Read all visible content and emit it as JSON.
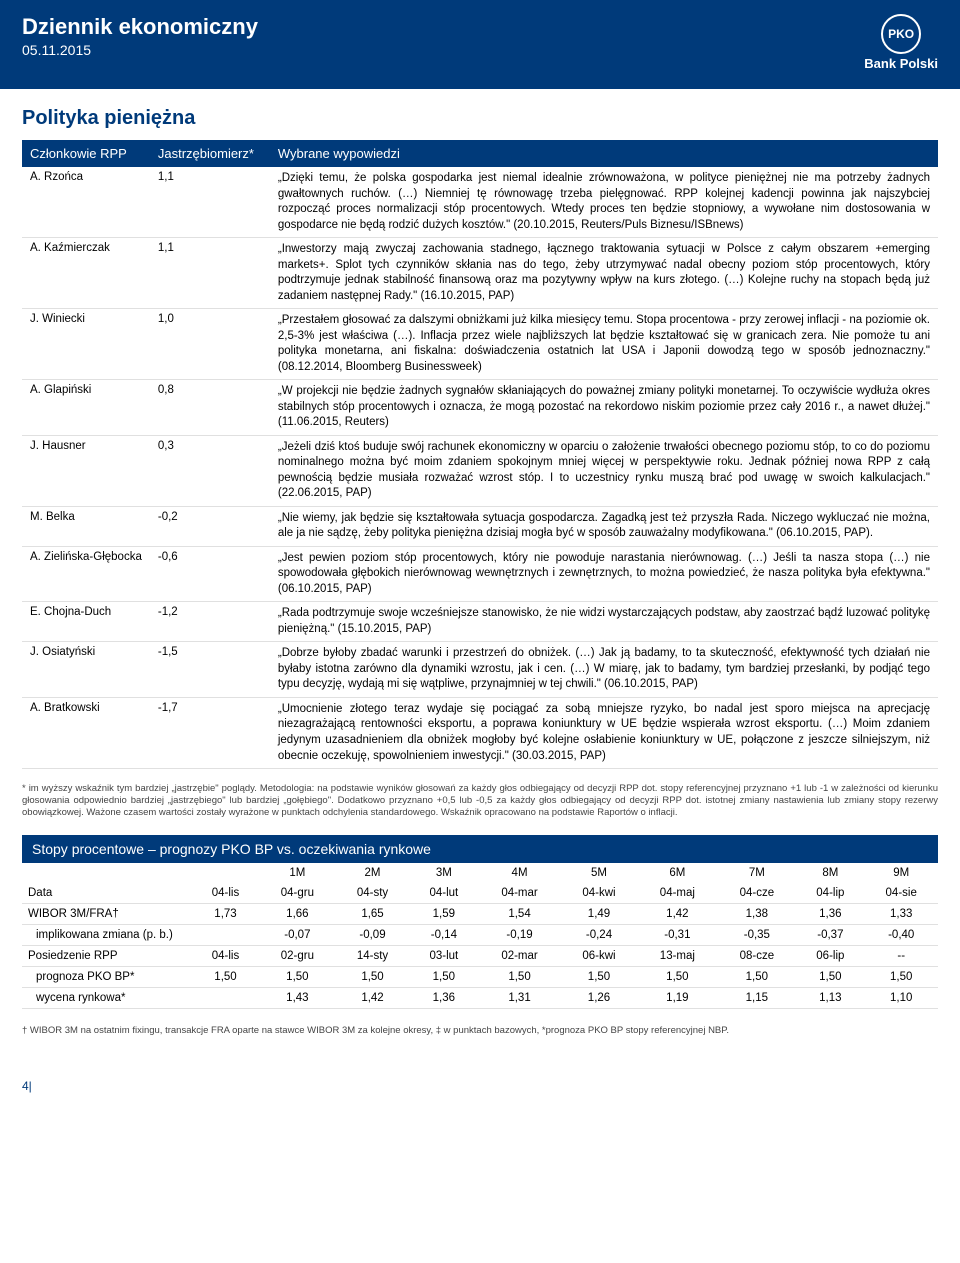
{
  "header": {
    "title": "Dziennik ekonomiczny",
    "date": "05.11.2015",
    "logo_text": "PKO",
    "logo_label": "Bank Polski"
  },
  "section_title": "Polityka pieniężna",
  "rpp": {
    "header": {
      "member": "Członkowie RPP",
      "score": "Jastrzębiomierz*",
      "quote": "Wybrane wypowiedzi"
    },
    "rows": [
      {
        "member": "A. Rzońca",
        "score": "1,1",
        "quote": "„Dzięki temu, że polska gospodarka jest niemal idealnie zrównoważona, w polityce pieniężnej nie ma potrzeby żadnych gwałtownych ruchów. (…) Niemniej tę równowagę trzeba pielęgnować. RPP kolejnej kadencji powinna jak najszybciej rozpocząć proces normalizacji stóp procentowych. Wtedy proces ten będzie stopniowy, a wywołane nim dostosowania w gospodarce nie będą rodzić dużych kosztów.\" (20.10.2015, Reuters/Puls Biznesu/ISBnews)"
      },
      {
        "member": "A. Kaźmierczak",
        "score": "1,1",
        "quote": "„Inwestorzy mają zwyczaj zachowania stadnego, łącznego traktowania sytuacji w Polsce z całym obszarem +emerging markets+. Splot tych czynników skłania nas do tego, żeby utrzymywać nadal obecny poziom stóp procentowych, który podtrzymuje jednak stabilność finansową oraz ma pozytywny wpływ na kurs złotego. (…) Kolejne ruchy na stopach będą już zadaniem następnej Rady.\" (16.10.2015, PAP)"
      },
      {
        "member": "J. Winiecki",
        "score": "1,0",
        "quote": "„Przestałem głosować za dalszymi obniżkami już kilka miesięcy temu. Stopa procentowa - przy zerowej inflacji - na poziomie ok. 2,5-3% jest właściwa (…). Inflacja przez wiele najbliższych lat będzie kształtować się w granicach zera. Nie pomoże tu ani polityka monetarna, ani fiskalna: doświadczenia ostatnich lat USA i Japonii dowodzą tego w sposób jednoznaczny.\" (08.12.2014, Bloomberg Businessweek)"
      },
      {
        "member": "A. Glapiński",
        "score": "0,8",
        "quote": "„W projekcji nie będzie żadnych sygnałów skłaniających do poważnej zmiany polityki monetarnej. To oczywiście wydłuża okres stabilnych stóp procentowych i oznacza, że mogą pozostać na rekordowo niskim poziomie przez cały 2016 r., a nawet dłużej.\" (11.06.2015, Reuters)"
      },
      {
        "member": "J. Hausner",
        "score": "0,3",
        "quote": "„Jeżeli dziś ktoś buduje swój rachunek ekonomiczny w oparciu o założenie trwałości obecnego poziomu stóp, to co do poziomu nominalnego można być moim zdaniem spokojnym mniej więcej w perspektywie roku. Jednak później nowa RPP z całą pewnością będzie musiała rozważać wzrost stóp. I to uczestnicy rynku muszą brać pod uwagę w swoich kalkulacjach.\" (22.06.2015, PAP)"
      },
      {
        "member": "M. Belka",
        "score": "-0,2",
        "quote": "„Nie wiemy, jak będzie się kształtowała sytuacja gospodarcza. Zagadką jest też przyszła Rada. Niczego wykluczać nie można, ale ja nie sądzę, żeby polityka pieniężna dzisiaj mogła być w sposób zauważalny modyfikowana.\" (06.10.2015, PAP)."
      },
      {
        "member": "A. Zielińska-Głębocka",
        "score": "-0,6",
        "quote": "„Jest pewien poziom stóp procentowych, który nie powoduje narastania nierównowag. (…) Jeśli ta nasza stopa (…) nie spowodowała głębokich nierównowag wewnętrznych i zewnętrznych, to można powiedzieć, że nasza polityka była efektywna.\" (06.10.2015, PAP)"
      },
      {
        "member": "E. Chojna-Duch",
        "score": "-1,2",
        "quote": "„Rada podtrzymuje swoje wcześniejsze stanowisko, że nie widzi wystarczających podstaw, aby zaostrzać bądź luzować politykę pieniężną.\" (15.10.2015, PAP)"
      },
      {
        "member": "J. Osiatyński",
        "score": "-1,5",
        "quote": "„Dobrze byłoby zbadać warunki i przestrzeń do obniżek. (…) Jak ją badamy, to ta skuteczność, efektywność tych działań nie byłaby istotna zarówno dla dynamiki wzrostu, jak i cen. (…) W miarę, jak to badamy, tym bardziej przesłanki, by podjąć tego typu decyzję, wydają mi się wątpliwe, przynajmniej w tej chwili.\" (06.10.2015, PAP)"
      },
      {
        "member": "A. Bratkowski",
        "score": "-1,7",
        "quote": "„Umocnienie złotego teraz wydaje się pociągać za sobą mniejsze ryzyko, bo nadal jest sporo miejsca na aprecjację niezagrażającą rentowności eksportu, a poprawa koniunktury w UE będzie wspierała wzrost eksportu. (…) Moim zdaniem jedynym uzasadnieniem dla obniżek mogłoby być kolejne osłabienie koniunktury w UE, połączone z jeszcze silniejszym, niż obecnie oczekuję, spowolnieniem inwestycji.\" (30.03.2015, PAP)"
      }
    ],
    "footnote": "* im wyższy wskaźnik tym bardziej „jastrzębie\" poglądy. Metodologia: na podstawie wyników głosowań za każdy głos odbiegający od decyzji RPP dot. stopy referencyjnej przyznano +1 lub -1 w zależności od kierunku głosowania odpowiednio bardziej „jastrzębiego\" lub bardziej „gołębiego\". Dodatkowo przyznano +0,5 lub -0,5 za każdy głos odbiegający od decyzji RPP dot. istotnej zmiany nastawienia lub zmiany stopy rezerwy obowiązkowej. Ważone czasem wartości zostały wyrażone w punktach odchylenia standardowego. Wskaźnik opracowano na podstawie Raportów o inflacji."
  },
  "rates": {
    "title": "Stopy procentowe – prognozy PKO BP vs. oczekiwania rynkowe",
    "periods": [
      "1M",
      "2M",
      "3M",
      "4M",
      "5M",
      "6M",
      "7M",
      "8M",
      "9M"
    ],
    "data_header": "Data",
    "months": [
      "04-lis",
      "04-gru",
      "04-sty",
      "04-lut",
      "04-mar",
      "04-kwi",
      "04-maj",
      "04-cze",
      "04-lip",
      "04-sie"
    ],
    "rows": [
      {
        "label": "WIBOR 3M/FRA†",
        "indent": false,
        "values": [
          "1,73",
          "1,66",
          "1,65",
          "1,59",
          "1,54",
          "1,49",
          "1,42",
          "1,38",
          "1,36",
          "1,33"
        ]
      },
      {
        "label": "implikowana zmiana (p. b.)",
        "indent": true,
        "values": [
          "",
          "-0,07",
          "-0,09",
          "-0,14",
          "-0,19",
          "-0,24",
          "-0,31",
          "-0,35",
          "-0,37",
          "-0,40"
        ]
      },
      {
        "label": "Posiedzenie RPP",
        "indent": false,
        "values": [
          "04-lis",
          "02-gru",
          "14-sty",
          "03-lut",
          "02-mar",
          "06-kwi",
          "13-maj",
          "08-cze",
          "06-lip",
          "--"
        ]
      },
      {
        "label": "prognoza PKO BP*",
        "indent": true,
        "values": [
          "1,50",
          "1,50",
          "1,50",
          "1,50",
          "1,50",
          "1,50",
          "1,50",
          "1,50",
          "1,50",
          "1,50"
        ]
      },
      {
        "label": "wycena rynkowa*",
        "indent": true,
        "values": [
          "",
          "1,43",
          "1,42",
          "1,36",
          "1,31",
          "1,26",
          "1,19",
          "1,15",
          "1,13",
          "1,10"
        ]
      }
    ],
    "footnote": "† WIBOR 3M na ostatnim fixingu, transakcje FRA oparte na stawce WIBOR 3M za kolejne okresy, ‡ w punktach bazowych, *prognoza PKO BP stopy referencyjnej NBP."
  },
  "page_number": "4|"
}
